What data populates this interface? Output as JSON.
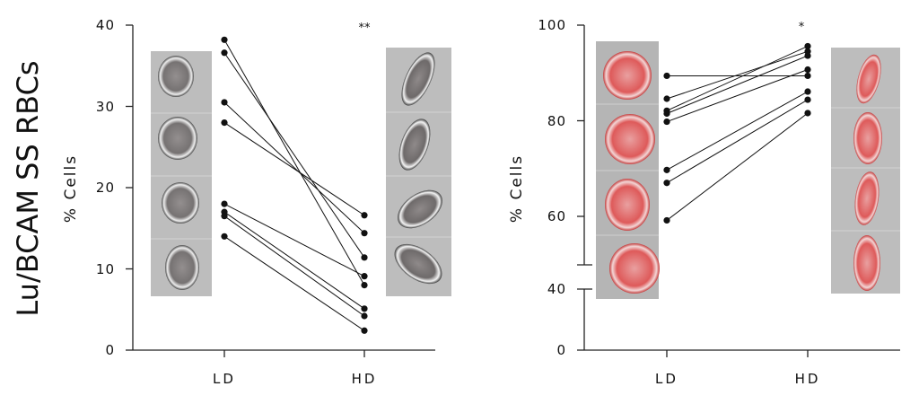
{
  "figure_label": "Lu/BCAM SS RBCs",
  "colors": {
    "points": "#111111",
    "cell_tint": "#e64a4a",
    "cell_panel": "#b9b9b9"
  },
  "chart_data": [
    {
      "type": "scatter",
      "subtype": "paired",
      "categories": [
        "LD",
        "HD"
      ],
      "ylabel": "% Cells",
      "ylim": [
        0,
        40
      ],
      "yticks": [
        "0",
        "10",
        "20",
        "30",
        "40"
      ],
      "significance": "**",
      "pairs": [
        {
          "LD": 38.2,
          "HD": 8.0
        },
        {
          "LD": 36.6,
          "HD": 11.4
        },
        {
          "LD": 30.5,
          "HD": 14.4
        },
        {
          "LD": 28.0,
          "HD": 16.6
        },
        {
          "LD": 18.0,
          "HD": 9.1
        },
        {
          "LD": 17.0,
          "HD": 5.1
        },
        {
          "LD": 16.5,
          "HD": 4.2
        },
        {
          "LD": 14.0,
          "HD": 2.4
        }
      ],
      "images": {
        "LD": "4 rounded red-tinted cells",
        "HD": "4 elongated dense cells"
      }
    },
    {
      "type": "scatter",
      "subtype": "paired",
      "categories": [
        "LD",
        "HD"
      ],
      "ylabel": "% Cells",
      "ylim": [
        0,
        100
      ],
      "axis_break": [
        40,
        60
      ],
      "yticks": [
        "0",
        "40",
        "60",
        "80",
        "100"
      ],
      "significance": "*",
      "pairs": [
        {
          "LD": 89.4,
          "HD": 89.4
        },
        {
          "LD": 84.6,
          "HD": 94.5
        },
        {
          "LD": 82.1,
          "HD": 95.6
        },
        {
          "LD": 81.5,
          "HD": 93.6
        },
        {
          "LD": 79.8,
          "HD": 90.7
        },
        {
          "LD": 69.7,
          "HD": 86.1
        },
        {
          "LD": 67.0,
          "HD": 84.4
        },
        {
          "LD": 58.9,
          "HD": 81.6
        }
      ],
      "images": {
        "LD": "4 round red-tinted cells",
        "HD": "4 irregular dense cells"
      }
    }
  ]
}
